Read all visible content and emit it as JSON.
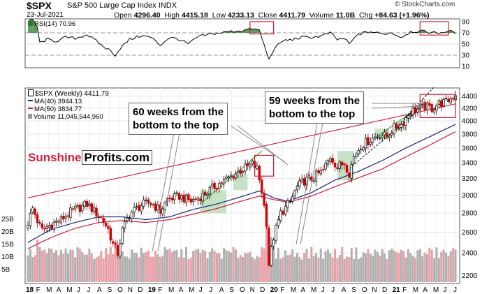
{
  "header": {
    "symbol": "$SPX",
    "name": "S&P 500 Large Cap Index",
    "exchange": "INDX",
    "date": "23-Jul-2021",
    "open_label": "Open",
    "open": "4296.40",
    "high_label": "High",
    "high": "4415.18",
    "low_label": "Low",
    "low": "4233.13",
    "close_label": "Close",
    "close": "4411.79",
    "volume_label": "Volume",
    "volume": "11.0B",
    "chg_label": "Chg",
    "chg": "+84.63 (+1.96%)",
    "credit": "© StockCharts.com"
  },
  "brand": {
    "part1": "Sunshine",
    "part2": "Profits.com"
  },
  "annotations": [
    {
      "text": "60 weeks from the\nbottom to the top"
    },
    {
      "text": "59 weeks from the\nbottom to the top"
    }
  ],
  "colors": {
    "up": "#000000",
    "down": "#cc0000",
    "ma40": "#1a237e",
    "ma50": "#cc1a3a",
    "trend": "#cc1a3a",
    "green_line": "#2aa52a",
    "green_zone": "#99cc99",
    "vol_up": "#b0b0b0",
    "vol_down": "#e8a0a8",
    "rsi": "#000000",
    "box": "#cc1a3a"
  },
  "chart_data": {
    "type": "candlestick",
    "price_panel": {
      "legend": [
        {
          "label": "$SPX (Weekly) 4411.79"
        },
        {
          "label": "MA(40) 3944.13"
        },
        {
          "label": "MA(50) 3834.77"
        },
        {
          "label": "Volume 11,045,544,960"
        }
      ],
      "y_ticks": [
        2200,
        2400,
        2600,
        2800,
        3000,
        3200,
        3400,
        3600,
        3800,
        4000,
        4200,
        4400
      ],
      "y_range": [
        2150,
        4480
      ],
      "x_labels": [
        "18",
        "F",
        "M",
        "A",
        "M",
        "J",
        "J",
        "A",
        "S",
        "O",
        "N",
        "D",
        "19",
        "F",
        "M",
        "A",
        "M",
        "J",
        "J",
        "A",
        "S",
        "O",
        "N",
        "D",
        "20",
        "F",
        "M",
        "A",
        "M",
        "J",
        "J",
        "A",
        "S",
        "O",
        "N",
        "D",
        "21",
        "F",
        "M",
        "A",
        "M",
        "J",
        "J"
      ],
      "close_anchors": [
        [
          0,
          2700
        ],
        [
          2,
          2850
        ],
        [
          4,
          2720
        ],
        [
          6,
          2620
        ],
        [
          9,
          2670
        ],
        [
          14,
          2730
        ],
        [
          18,
          2810
        ],
        [
          22,
          2860
        ],
        [
          25,
          2900
        ],
        [
          29,
          2800
        ],
        [
          31,
          2750
        ],
        [
          34,
          2630
        ],
        [
          36,
          2480
        ],
        [
          38,
          2400
        ],
        [
          40,
          2620
        ],
        [
          43,
          2790
        ],
        [
          48,
          2890
        ],
        [
          52,
          2920
        ],
        [
          56,
          2820
        ],
        [
          59,
          2950
        ],
        [
          64,
          2990
        ],
        [
          69,
          2930
        ],
        [
          74,
          3000
        ],
        [
          78,
          3080
        ],
        [
          85,
          3210
        ],
        [
          90,
          3300
        ],
        [
          95,
          3380
        ],
        [
          97,
          3320
        ],
        [
          99,
          3050
        ],
        [
          101,
          2700
        ],
        [
          102,
          2300
        ],
        [
          104,
          2550
        ],
        [
          107,
          2800
        ],
        [
          111,
          2920
        ],
        [
          114,
          3100
        ],
        [
          117,
          3170
        ],
        [
          120,
          3200
        ],
        [
          125,
          3300
        ],
        [
          128,
          3480
        ],
        [
          131,
          3350
        ],
        [
          134,
          3400
        ],
        [
          136,
          3270
        ],
        [
          138,
          3480
        ],
        [
          141,
          3640
        ],
        [
          145,
          3720
        ],
        [
          149,
          3800
        ],
        [
          152,
          3760
        ],
        [
          155,
          3900
        ],
        [
          158,
          3940
        ],
        [
          162,
          4150
        ],
        [
          165,
          4180
        ],
        [
          168,
          4230
        ],
        [
          171,
          4200
        ],
        [
          174,
          4280
        ],
        [
          177,
          4300
        ],
        [
          179,
          4370
        ],
        [
          181,
          4411
        ]
      ],
      "ma40_anchors": [
        [
          0,
          2500
        ],
        [
          10,
          2630
        ],
        [
          20,
          2700
        ],
        [
          30,
          2760
        ],
        [
          40,
          2760
        ],
        [
          50,
          2730
        ],
        [
          60,
          2760
        ],
        [
          70,
          2840
        ],
        [
          80,
          2900
        ],
        [
          90,
          2980
        ],
        [
          98,
          3050
        ],
        [
          104,
          2970
        ],
        [
          110,
          2930
        ],
        [
          120,
          3030
        ],
        [
          130,
          3180
        ],
        [
          140,
          3290
        ],
        [
          150,
          3430
        ],
        [
          160,
          3600
        ],
        [
          170,
          3760
        ],
        [
          181,
          3944
        ]
      ],
      "ma50_anchors": [
        [
          0,
          2440
        ],
        [
          10,
          2550
        ],
        [
          20,
          2640
        ],
        [
          30,
          2700
        ],
        [
          40,
          2720
        ],
        [
          50,
          2700
        ],
        [
          60,
          2730
        ],
        [
          70,
          2790
        ],
        [
          80,
          2850
        ],
        [
          90,
          2930
        ],
        [
          98,
          2990
        ],
        [
          104,
          2950
        ],
        [
          110,
          2920
        ],
        [
          120,
          2990
        ],
        [
          130,
          3100
        ],
        [
          140,
          3210
        ],
        [
          150,
          3320
        ],
        [
          160,
          3480
        ],
        [
          170,
          3640
        ],
        [
          181,
          3835
        ]
      ],
      "trend_lines": [
        {
          "name": "upper-trend",
          "from": [
            0,
            2970
          ],
          "to": [
            181,
            4270
          ]
        },
        {
          "name": "green-up-2019",
          "from": [
            73,
            2900
          ],
          "to": [
            99,
            3560
          ]
        },
        {
          "name": "green-up-2021",
          "from": [
            148,
            3770
          ],
          "to": [
            168,
            4280
          ]
        },
        {
          "name": "black-dashed-2021",
          "from": [
            135,
            3300
          ],
          "to": [
            168,
            4250
          ]
        },
        {
          "name": "black-dashed-2021-top",
          "from": [
            156,
            3900
          ],
          "to": [
            172,
            4560
          ]
        }
      ],
      "green_zones": [
        {
          "from": [
            73,
            2800
          ],
          "to": [
            84,
            3060
          ]
        },
        {
          "from": [
            87,
            3060
          ],
          "to": [
            93,
            3250
          ]
        },
        {
          "from": [
            131,
            3180
          ],
          "to": [
            138,
            3560
          ]
        },
        {
          "from": [
            147,
            3730
          ],
          "to": [
            153,
            3880
          ]
        },
        {
          "from": [
            156,
            3850
          ],
          "to": [
            160,
            3980
          ]
        }
      ],
      "red_boxes": [
        {
          "from": [
            96,
            3230
          ],
          "to": [
            104,
            3500
          ]
        },
        {
          "from": [
            166,
            4050
          ],
          "to": [
            181,
            4430
          ]
        }
      ]
    },
    "rsi_panel": {
      "label": "RSI(14) 70.96",
      "y_ticks": [
        10,
        30,
        50,
        70,
        90
      ],
      "levels": [
        30,
        70
      ],
      "red_boxes": [
        {
          "from": [
            94,
            68
          ],
          "to": [
            104,
            90
          ]
        },
        {
          "from": [
            166,
            66
          ],
          "to": [
            178,
            90
          ]
        }
      ],
      "anchors": [
        [
          0,
          88
        ],
        [
          2,
          95
        ],
        [
          4,
          80
        ],
        [
          5,
          52
        ],
        [
          8,
          58
        ],
        [
          12,
          55
        ],
        [
          16,
          62
        ],
        [
          20,
          60
        ],
        [
          25,
          67
        ],
        [
          29,
          55
        ],
        [
          32,
          45
        ],
        [
          35,
          38
        ],
        [
          37,
          30
        ],
        [
          39,
          42
        ],
        [
          43,
          58
        ],
        [
          48,
          65
        ],
        [
          52,
          62
        ],
        [
          56,
          48
        ],
        [
          60,
          62
        ],
        [
          64,
          58
        ],
        [
          68,
          50
        ],
        [
          72,
          63
        ],
        [
          78,
          68
        ],
        [
          85,
          72
        ],
        [
          90,
          74
        ],
        [
          95,
          77
        ],
        [
          98,
          74
        ],
        [
          100,
          48
        ],
        [
          102,
          22
        ],
        [
          104,
          40
        ],
        [
          108,
          56
        ],
        [
          112,
          58
        ],
        [
          116,
          62
        ],
        [
          120,
          62
        ],
        [
          124,
          64
        ],
        [
          128,
          70
        ],
        [
          131,
          58
        ],
        [
          134,
          60
        ],
        [
          136,
          50
        ],
        [
          140,
          68
        ],
        [
          145,
          72
        ],
        [
          150,
          68
        ],
        [
          154,
          70
        ],
        [
          158,
          62
        ],
        [
          162,
          72
        ],
        [
          166,
          73
        ],
        [
          170,
          71
        ],
        [
          174,
          70
        ],
        [
          178,
          73
        ],
        [
          181,
          71
        ]
      ]
    },
    "volume_panel": {
      "y_ticks": [
        "5B",
        "10B",
        "15B",
        "20B",
        "25B"
      ],
      "spikes": [
        [
          4,
          17
        ],
        [
          5,
          14
        ],
        [
          7,
          13
        ],
        [
          37,
          16
        ],
        [
          38,
          14
        ],
        [
          101,
          23
        ],
        [
          102,
          21
        ],
        [
          103,
          18
        ]
      ]
    }
  }
}
